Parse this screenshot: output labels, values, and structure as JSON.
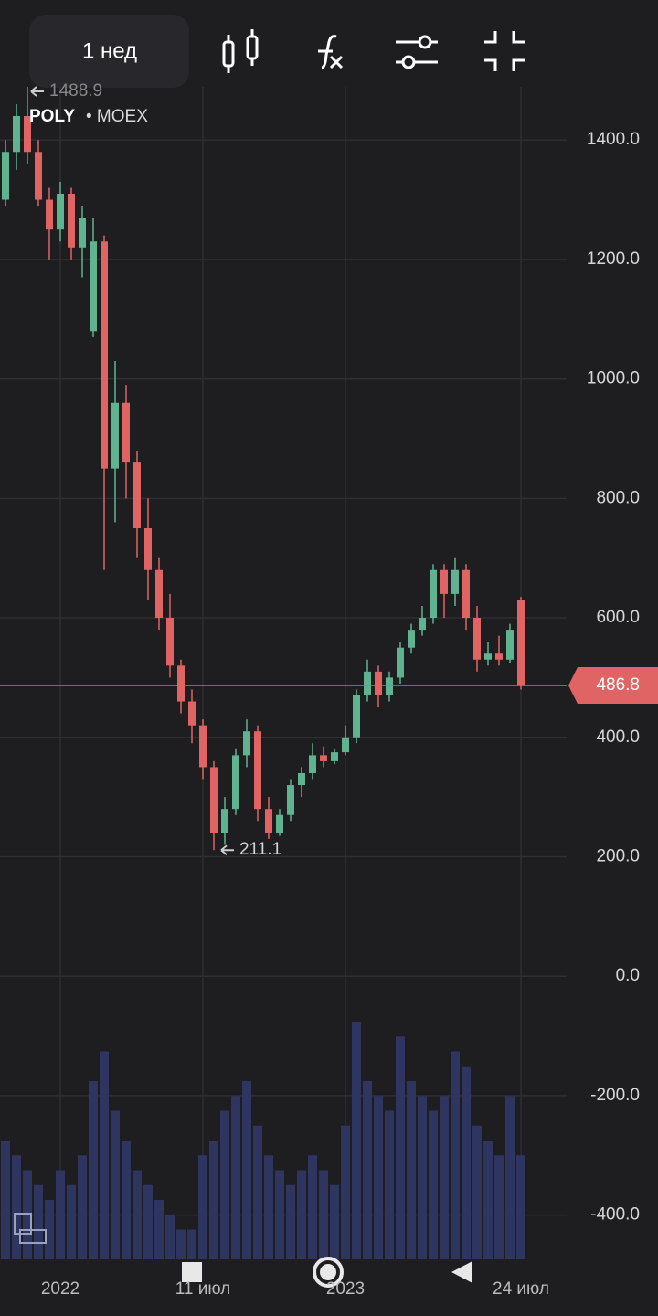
{
  "toolbar": {
    "interval": "1 нед"
  },
  "chart_data": {
    "type": "candlestick",
    "symbol": "POLY",
    "exchange": "• MOEX",
    "categories": [
      null,
      null,
      null,
      null,
      null,
      "2022",
      null,
      null,
      null,
      null,
      null,
      null,
      null,
      null,
      null,
      null,
      null,
      null,
      "11 июл",
      null,
      null,
      null,
      null,
      null,
      null,
      null,
      null,
      null,
      null,
      null,
      null,
      "2023",
      null,
      null,
      null,
      null,
      null,
      null,
      null,
      null,
      null,
      null,
      null,
      null,
      null,
      null,
      null,
      "24 июл"
    ],
    "open": [
      1300,
      1380,
      1440,
      1380,
      1300,
      1250,
      1310,
      1220,
      1080,
      1230,
      850,
      960,
      860,
      750,
      680,
      600,
      520,
      460,
      420,
      350,
      240,
      280,
      370,
      410,
      280,
      240,
      270,
      320,
      340,
      370,
      360,
      375,
      400,
      470,
      510,
      470,
      500,
      550,
      580,
      600,
      680,
      640,
      680,
      600,
      530,
      540,
      530,
      630
    ],
    "high": [
      1400,
      1460,
      1488.9,
      1400,
      1320,
      1330,
      1320,
      1290,
      1270,
      1240,
      1030,
      990,
      880,
      800,
      700,
      640,
      530,
      480,
      430,
      360,
      300,
      380,
      430,
      420,
      300,
      280,
      330,
      350,
      390,
      385,
      380,
      420,
      480,
      530,
      520,
      510,
      560,
      590,
      620,
      690,
      690,
      700,
      690,
      620,
      560,
      570,
      590,
      635
    ],
    "low": [
      1290,
      1350,
      1360,
      1290,
      1200,
      1230,
      1200,
      1170,
      1070,
      680,
      760,
      800,
      700,
      630,
      580,
      500,
      440,
      390,
      330,
      211.1,
      220,
      270,
      350,
      260,
      230,
      235,
      260,
      300,
      330,
      350,
      355,
      370,
      390,
      460,
      450,
      460,
      490,
      540,
      570,
      590,
      600,
      620,
      580,
      510,
      520,
      520,
      525,
      480
    ],
    "close": [
      1380,
      1440,
      1380,
      1300,
      1250,
      1310,
      1220,
      1270,
      1230,
      850,
      960,
      860,
      750,
      680,
      600,
      520,
      460,
      420,
      350,
      240,
      280,
      370,
      410,
      280,
      240,
      270,
      320,
      340,
      370,
      360,
      375,
      400,
      470,
      510,
      470,
      500,
      550,
      580,
      600,
      680,
      640,
      680,
      600,
      530,
      540,
      530,
      580,
      486.8
    ],
    "volume": [
      40,
      35,
      30,
      25,
      20,
      30,
      25,
      35,
      60,
      70,
      50,
      40,
      30,
      25,
      20,
      15,
      10,
      10,
      35,
      40,
      50,
      55,
      60,
      45,
      35,
      30,
      25,
      30,
      35,
      30,
      25,
      45,
      80,
      60,
      55,
      50,
      75,
      60,
      55,
      50,
      55,
      70,
      65,
      45,
      40,
      35,
      55,
      35
    ],
    "up_color": "#5fb391",
    "down_color": "#e06464",
    "volume_color": "#2e3560",
    "ylim": [
      -474,
      1489
    ],
    "yticks": [
      {
        "value": -400,
        "label": "-400.0"
      },
      {
        "value": -200,
        "label": "-200.0"
      },
      {
        "value": 0,
        "label": "0.0"
      },
      {
        "value": 200,
        "label": "200.0"
      },
      {
        "value": 400,
        "label": "400.0"
      },
      {
        "value": 600,
        "label": "600.0"
      },
      {
        "value": 800,
        "label": "800.0"
      },
      {
        "value": 1000,
        "label": "1000.0"
      },
      {
        "value": 1200,
        "label": "1200.0"
      },
      {
        "value": 1400,
        "label": "1400.0"
      }
    ],
    "last_price": 486.8,
    "high_annotation": 1488.9,
    "low_annotation": 211.1,
    "grid": true
  }
}
